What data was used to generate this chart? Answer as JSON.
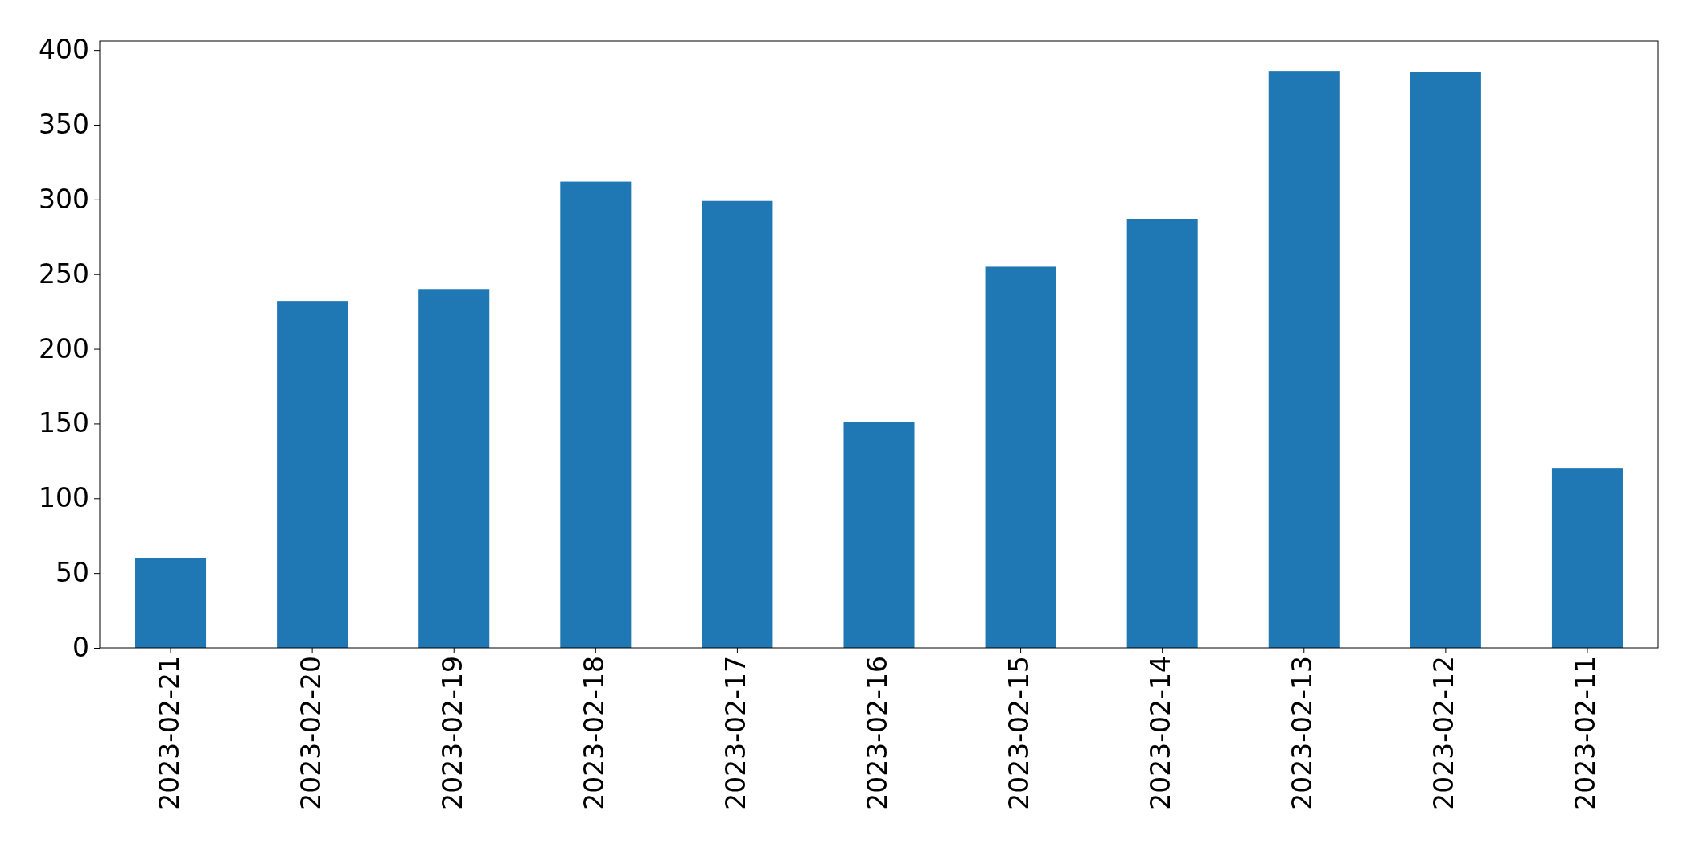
{
  "chart_data": {
    "type": "bar",
    "categories": [
      "2023-02-21",
      "2023-02-20",
      "2023-02-19",
      "2023-02-18",
      "2023-02-17",
      "2023-02-16",
      "2023-02-15",
      "2023-02-14",
      "2023-02-13",
      "2023-02-12",
      "2023-02-11"
    ],
    "values": [
      60,
      232,
      240,
      312,
      299,
      151,
      255,
      287,
      386,
      385,
      120
    ],
    "color": "#1f77b4",
    "ylim": [
      0,
      406
    ],
    "yticks": [
      0,
      50,
      100,
      150,
      200,
      250,
      300,
      350,
      400
    ],
    "grid": false
  }
}
